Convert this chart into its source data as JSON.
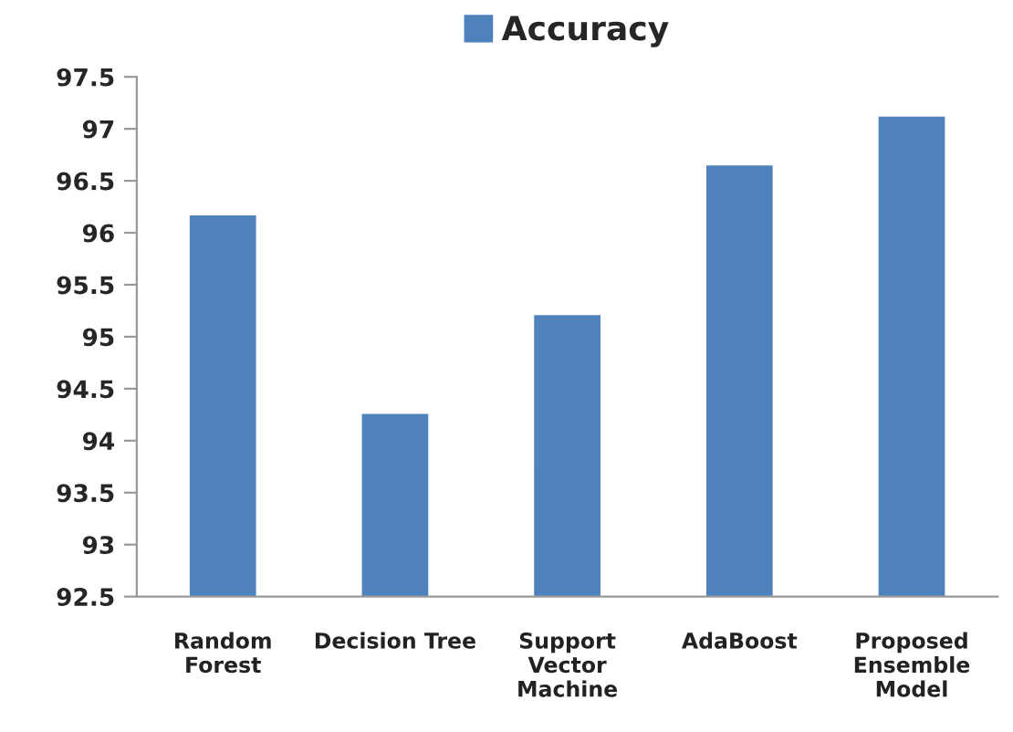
{
  "chart_data": {
    "type": "bar",
    "categories": [
      "Random\nForest",
      "Decision Tree",
      "Support\nVector\nMachine",
      "AdaBoost",
      "Proposed\nEnsemble\nModel"
    ],
    "series": [
      {
        "name": "Accuracy",
        "color": "#4f81bd",
        "values": [
          96.18,
          94.27,
          95.22,
          96.66,
          97.13
        ]
      }
    ],
    "ylim": [
      92.5,
      97.5
    ],
    "yticks": [
      {
        "value": 92.5,
        "label": "92.5"
      },
      {
        "value": 93,
        "label": "93"
      },
      {
        "value": 93.5,
        "label": "93.5"
      },
      {
        "value": 94,
        "label": "94"
      },
      {
        "value": 94.5,
        "label": "94.5"
      },
      {
        "value": 95,
        "label": "95"
      },
      {
        "value": 95.5,
        "label": "95.5"
      },
      {
        "value": 96,
        "label": "96"
      },
      {
        "value": 96.5,
        "label": "96.5"
      },
      {
        "value": 97,
        "label": "97"
      },
      {
        "value": 97.5,
        "label": "97.5"
      }
    ],
    "grid": false,
    "legend": "top"
  }
}
